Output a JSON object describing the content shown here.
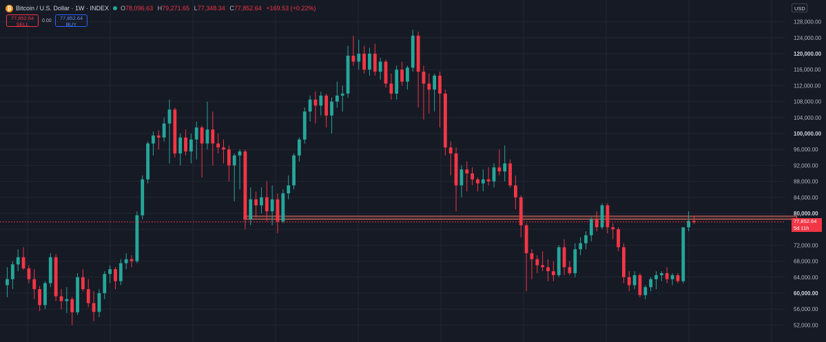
{
  "header": {
    "symbol_icon": "bitcoin-icon",
    "symbol_glyph": "₿",
    "title": "Bitcoin / U.S. Dollar · 1W · INDEX",
    "open_label": "O",
    "open": "78,096.63",
    "high_label": "H",
    "high": "79,271.65",
    "low_label": "L",
    "low": "77,348.34",
    "close_label": "C",
    "close": "77,852.64",
    "change": "+169.53 (+0.22%)"
  },
  "trade": {
    "sell_price": "77,852.64",
    "sell_label": "SELL",
    "spread": "0.00",
    "buy_price": "77,852.64",
    "buy_label": "BUY"
  },
  "currency": "USD",
  "price_tag": {
    "price": "77,852.64",
    "countdown": "5d 11h"
  },
  "colors": {
    "up": "#26a69a",
    "down": "#f23645",
    "background": "#161a25",
    "grid": "#232632",
    "zone": "#e4705e"
  },
  "chart_data": {
    "type": "candlestick",
    "ylim": [
      50000,
      130000
    ],
    "y_ticks": [
      52000,
      56000,
      60000,
      64000,
      68000,
      72000,
      76000,
      80000,
      84000,
      88000,
      92000,
      96000,
      100000,
      104000,
      108000,
      112000,
      116000,
      120000,
      124000,
      128000
    ],
    "y_tick_labels": [
      "52,000.00",
      "56,000.00",
      "60,000.00",
      "64,000.00",
      "68,000.00",
      "72,000.00",
      "76,000.00",
      "80,000.00",
      "84,000.00",
      "88,000.00",
      "92,000.00",
      "96,000.00",
      "100,000.00",
      "104,000.00",
      "108,000.00",
      "112,000.00",
      "116,000.00",
      "120,000.00",
      "124,000.00",
      "128,000.00"
    ],
    "bold_ticks": [
      60000,
      80000,
      100000,
      120000
    ],
    "current_price": 77852.64,
    "resistance_zone": {
      "from": 78500,
      "to": 79300,
      "start_index": 44,
      "end_index": 146
    },
    "candles": [
      [
        62000,
        66500,
        59000,
        63500
      ],
      [
        63500,
        68000,
        61000,
        67200
      ],
      [
        67200,
        71000,
        65500,
        69000
      ],
      [
        69000,
        71500,
        65800,
        66200
      ],
      [
        66200,
        67000,
        62500,
        63500
      ],
      [
        63500,
        66000,
        58500,
        61000
      ],
      [
        61000,
        61800,
        55500,
        57000
      ],
      [
        57000,
        63000,
        56000,
        62500
      ],
      [
        62500,
        70000,
        61500,
        69000
      ],
      [
        69000,
        69800,
        58000,
        59200
      ],
      [
        59200,
        61000,
        56000,
        58000
      ],
      [
        58000,
        61500,
        55000,
        58500
      ],
      [
        58500,
        59000,
        52000,
        55200
      ],
      [
        55200,
        65000,
        54500,
        64000
      ],
      [
        64000,
        66000,
        60500,
        61000
      ],
      [
        61000,
        63500,
        56500,
        57500
      ],
      [
        57500,
        60500,
        53000,
        55300
      ],
      [
        55300,
        61000,
        54000,
        60000
      ],
      [
        60000,
        65500,
        58500,
        64800
      ],
      [
        64800,
        67000,
        62500,
        66000
      ],
      [
        66000,
        66500,
        61000,
        63000
      ],
      [
        63000,
        68500,
        62000,
        67500
      ],
      [
        67500,
        70000,
        66000,
        68500
      ],
      [
        68500,
        69500,
        66500,
        68000
      ],
      [
        68000,
        80500,
        67500,
        79500
      ],
      [
        79500,
        89500,
        78500,
        88500
      ],
      [
        88500,
        98000,
        87500,
        97500
      ],
      [
        97500,
        100500,
        94500,
        99500
      ],
      [
        99500,
        100800,
        96000,
        99000
      ],
      [
        99000,
        104000,
        98000,
        102500
      ],
      [
        102500,
        108500,
        92500,
        106000
      ],
      [
        106000,
        106500,
        94000,
        95000
      ],
      [
        95000,
        100000,
        92000,
        99000
      ],
      [
        99000,
        101000,
        94500,
        95500
      ],
      [
        95500,
        100000,
        92500,
        98500
      ],
      [
        98500,
        103000,
        93500,
        101500
      ],
      [
        101500,
        102000,
        89000,
        97500
      ],
      [
        97500,
        108000,
        96000,
        101000
      ],
      [
        101000,
        105500,
        92000,
        97500
      ],
      [
        97500,
        100000,
        95000,
        96500
      ],
      [
        96500,
        98500,
        92500,
        96000
      ],
      [
        96000,
        97000,
        88000,
        92000
      ],
      [
        92000,
        95000,
        83000,
        94500
      ],
      [
        94500,
        96000,
        86000,
        95500
      ],
      [
        95500,
        96000,
        76000,
        78500
      ],
      [
        78500,
        86500,
        77000,
        83500
      ],
      [
        83500,
        85500,
        79000,
        82000
      ],
      [
        82000,
        86500,
        80000,
        84000
      ],
      [
        84000,
        88000,
        78000,
        80500
      ],
      [
        80500,
        87000,
        77000,
        83500
      ],
      [
        83500,
        85000,
        75000,
        78000
      ],
      [
        78000,
        86000,
        77500,
        85000
      ],
      [
        85000,
        89500,
        83500,
        87000
      ],
      [
        87000,
        95000,
        86000,
        94500
      ],
      [
        94500,
        99000,
        93000,
        98500
      ],
      [
        98500,
        106500,
        97500,
        105500
      ],
      [
        105500,
        109500,
        103000,
        108500
      ],
      [
        108500,
        110500,
        102500,
        107000
      ],
      [
        107000,
        110500,
        104500,
        109500
      ],
      [
        109500,
        110000,
        101500,
        104500
      ],
      [
        104500,
        109000,
        100000,
        108000
      ],
      [
        108000,
        113000,
        106500,
        109500
      ],
      [
        109500,
        112000,
        105500,
        110000
      ],
      [
        110000,
        122000,
        109000,
        119500
      ],
      [
        119500,
        124500,
        117000,
        118000
      ],
      [
        118000,
        123500,
        116000,
        120000
      ],
      [
        120000,
        122000,
        115000,
        116000
      ],
      [
        116000,
        121500,
        114500,
        120000
      ],
      [
        120000,
        122500,
        114500,
        115500
      ],
      [
        115500,
        119000,
        113500,
        118000
      ],
      [
        118000,
        118500,
        111500,
        112500
      ],
      [
        112500,
        115000,
        108500,
        110000
      ],
      [
        110000,
        117000,
        108500,
        116000
      ],
      [
        116000,
        118000,
        112000,
        113000
      ],
      [
        113000,
        117000,
        111000,
        116500
      ],
      [
        116500,
        126000,
        115500,
        124500
      ],
      [
        124500,
        125500,
        106500,
        115500
      ],
      [
        115500,
        117000,
        103500,
        112500
      ],
      [
        112500,
        115000,
        105000,
        111000
      ],
      [
        111000,
        115000,
        105500,
        114500
      ],
      [
        114500,
        115500,
        101500,
        110000
      ],
      [
        110000,
        111000,
        94500,
        96500
      ],
      [
        96500,
        98000,
        89500,
        95000
      ],
      [
        95000,
        96500,
        80500,
        87000
      ],
      [
        87000,
        92000,
        84000,
        91000
      ],
      [
        91000,
        93000,
        85500,
        90000
      ],
      [
        90000,
        91500,
        87000,
        88500
      ],
      [
        88500,
        89000,
        85500,
        87500
      ],
      [
        87500,
        91000,
        85500,
        88500
      ],
      [
        88500,
        91500,
        87000,
        88000
      ],
      [
        88000,
        92500,
        86500,
        91500
      ],
      [
        91500,
        96000,
        89500,
        90500
      ],
      [
        90500,
        97000,
        88000,
        92500
      ],
      [
        92500,
        93500,
        86500,
        87000
      ],
      [
        87000,
        89500,
        81000,
        84000
      ],
      [
        84000,
        84500,
        74000,
        77000
      ],
      [
        77000,
        77500,
        60500,
        70000
      ],
      [
        70000,
        71000,
        63500,
        68500
      ],
      [
        68500,
        69500,
        65000,
        67000
      ],
      [
        67000,
        70500,
        65500,
        66500
      ],
      [
        66500,
        68500,
        63000,
        65500
      ],
      [
        65500,
        68000,
        63000,
        64500
      ],
      [
        64500,
        72000,
        64000,
        71500
      ],
      [
        71500,
        73500,
        64500,
        66500
      ],
      [
        66500,
        68000,
        64500,
        65000
      ],
      [
        65000,
        72500,
        64000,
        71000
      ],
      [
        71000,
        74000,
        69500,
        72500
      ],
      [
        72500,
        75500,
        71000,
        74500
      ],
      [
        74500,
        79000,
        73000,
        78500
      ],
      [
        78500,
        80500,
        75500,
        76500
      ],
      [
        76500,
        82500,
        76000,
        82000
      ],
      [
        82000,
        82500,
        75000,
        76500
      ],
      [
        76500,
        77500,
        73500,
        76000
      ],
      [
        76000,
        76500,
        70500,
        71500
      ],
      [
        71500,
        72500,
        62500,
        64000
      ],
      [
        64000,
        65500,
        60500,
        62000
      ],
      [
        62000,
        65500,
        61000,
        64500
      ],
      [
        64500,
        65000,
        59000,
        59500
      ],
      [
        59500,
        62000,
        58500,
        61500
      ],
      [
        61500,
        64000,
        60500,
        63500
      ],
      [
        63500,
        65500,
        61000,
        64500
      ],
      [
        64500,
        65500,
        63000,
        65000
      ],
      [
        65000,
        66500,
        62500,
        63500
      ],
      [
        63500,
        65000,
        62000,
        64500
      ],
      [
        64500,
        65000,
        62500,
        63000
      ],
      [
        63000,
        76500,
        62500,
        76500
      ],
      [
        76500,
        80500,
        75500,
        78100
      ],
      [
        78100,
        79300,
        77300,
        77850
      ]
    ]
  }
}
